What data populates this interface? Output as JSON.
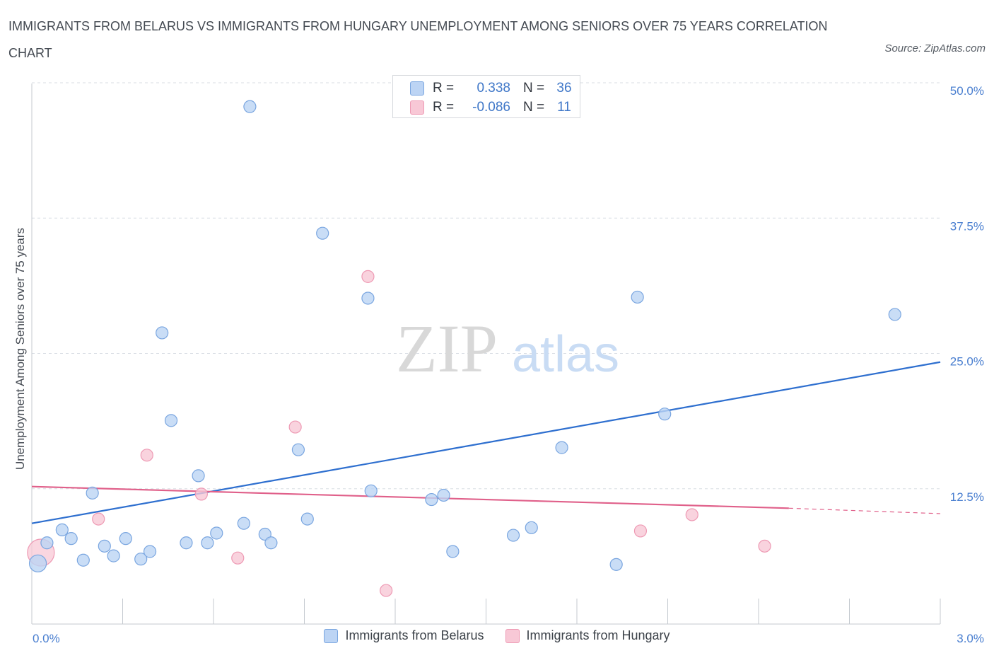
{
  "title": "IMMIGRANTS FROM BELARUS VS IMMIGRANTS FROM HUNGARY UNEMPLOYMENT AMONG SENIORS OVER 75 YEARS CORRELATION CHART",
  "source": "Source: ZipAtlas.com",
  "watermark": {
    "zip": "ZIP",
    "atlas": "atlas"
  },
  "colors": {
    "blue_fill": "#bcd4f4",
    "blue_stroke": "#7aa6e0",
    "blue_line": "#2e6fcf",
    "pink_fill": "#f8c8d6",
    "pink_stroke": "#ee9ab4",
    "pink_line": "#e0608a",
    "grid": "#d8dde3",
    "axis_text": "#4a7fd0"
  },
  "stats": [
    {
      "r_label": "R =",
      "r_value": "0.338",
      "n_label": "N =",
      "n_value": "36",
      "color": "blue"
    },
    {
      "r_label": "R =",
      "r_value": "-0.086",
      "n_label": "N =",
      "n_value": "11",
      "color": "pink"
    }
  ],
  "chart_data": {
    "type": "scatter",
    "title": "IMMIGRANTS FROM BELARUS VS IMMIGRANTS FROM HUNGARY UNEMPLOYMENT AMONG SENIORS OVER 75 YEARS CORRELATION CHART",
    "xlabel": "",
    "ylabel": "Unemployment Among Seniors over 75 years",
    "xlim": [
      0,
      3.0
    ],
    "ylim": [
      0,
      50
    ],
    "x_tick_labels": [
      "0.0%",
      "3.0%"
    ],
    "y_ticks": [
      12.5,
      25.0,
      37.5,
      50.0
    ],
    "y_tick_labels": [
      "12.5%",
      "25.0%",
      "37.5%",
      "50.0%"
    ],
    "grid": true,
    "legend": [
      "Immigrants from Belarus",
      "Immigrants from Hungary"
    ],
    "series": [
      {
        "name": "Immigrants from Belarus",
        "color": "blue",
        "points": [
          {
            "x": 0.02,
            "y": 5.6,
            "big": true
          },
          {
            "x": 0.05,
            "y": 7.5
          },
          {
            "x": 0.1,
            "y": 8.7
          },
          {
            "x": 0.13,
            "y": 7.9
          },
          {
            "x": 0.17,
            "y": 5.9
          },
          {
            "x": 0.2,
            "y": 12.1
          },
          {
            "x": 0.24,
            "y": 7.2
          },
          {
            "x": 0.27,
            "y": 6.3
          },
          {
            "x": 0.31,
            "y": 7.9
          },
          {
            "x": 0.36,
            "y": 6.0
          },
          {
            "x": 0.39,
            "y": 6.7
          },
          {
            "x": 0.43,
            "y": 26.9
          },
          {
            "x": 0.46,
            "y": 18.8
          },
          {
            "x": 0.51,
            "y": 7.5
          },
          {
            "x": 0.55,
            "y": 13.7
          },
          {
            "x": 0.58,
            "y": 7.5
          },
          {
            "x": 0.61,
            "y": 8.4
          },
          {
            "x": 0.7,
            "y": 9.3
          },
          {
            "x": 0.72,
            "y": 47.8
          },
          {
            "x": 0.77,
            "y": 8.3
          },
          {
            "x": 0.79,
            "y": 7.5
          },
          {
            "x": 0.88,
            "y": 16.1
          },
          {
            "x": 0.91,
            "y": 9.7
          },
          {
            "x": 0.96,
            "y": 36.1
          },
          {
            "x": 1.12,
            "y": 12.3
          },
          {
            "x": 1.11,
            "y": 30.1
          },
          {
            "x": 1.32,
            "y": 11.5
          },
          {
            "x": 1.36,
            "y": 11.9
          },
          {
            "x": 1.39,
            "y": 6.7
          },
          {
            "x": 1.59,
            "y": 8.2
          },
          {
            "x": 1.65,
            "y": 8.9
          },
          {
            "x": 1.75,
            "y": 16.3
          },
          {
            "x": 1.93,
            "y": 5.5
          },
          {
            "x": 2.0,
            "y": 30.2
          },
          {
            "x": 2.09,
            "y": 19.4
          },
          {
            "x": 2.85,
            "y": 28.6
          }
        ],
        "trend": {
          "x0": 0.0,
          "y0": 9.3,
          "x1": 3.0,
          "y1": 24.2
        }
      },
      {
        "name": "Immigrants from Hungary",
        "color": "pink",
        "points": [
          {
            "x": 0.03,
            "y": 6.6,
            "big": true
          },
          {
            "x": 0.22,
            "y": 9.7
          },
          {
            "x": 0.38,
            "y": 15.6
          },
          {
            "x": 0.56,
            "y": 12.0
          },
          {
            "x": 0.68,
            "y": 6.1
          },
          {
            "x": 0.87,
            "y": 18.2
          },
          {
            "x": 1.11,
            "y": 32.1
          },
          {
            "x": 1.17,
            "y": 3.1
          },
          {
            "x": 2.01,
            "y": 8.6
          },
          {
            "x": 2.18,
            "y": 10.1
          },
          {
            "x": 2.42,
            "y": 7.2
          }
        ],
        "trend": {
          "x0": 0.0,
          "y0": 12.7,
          "x1": 2.5,
          "y1": 10.7,
          "x_dash_end": 3.0,
          "y_dash_end": 10.2
        }
      }
    ]
  }
}
